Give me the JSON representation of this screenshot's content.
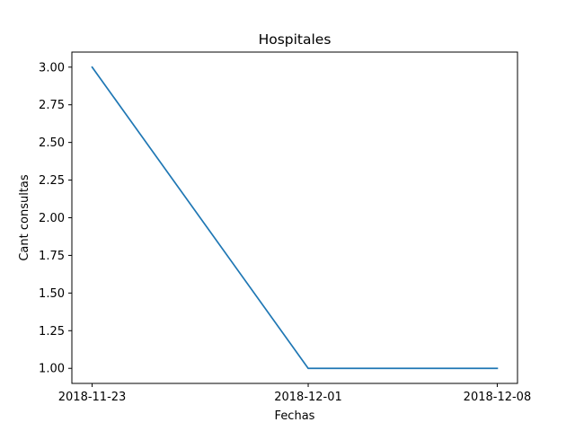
{
  "chart_data": {
    "type": "line",
    "title": "Hospitales",
    "xlabel": "Fechas",
    "ylabel": "Cant consultas",
    "x": [
      "2018-11-23",
      "2018-12-01",
      "2018-12-08"
    ],
    "series": [
      {
        "values": [
          3,
          1,
          1
        ],
        "color": "#1f77b4"
      }
    ],
    "ylim": [
      0.9,
      3.1
    ],
    "yticks": [
      "1.00",
      "1.25",
      "1.50",
      "1.75",
      "2.00",
      "2.25",
      "2.50",
      "2.75",
      "3.00"
    ],
    "grid": false,
    "legend": "none"
  }
}
